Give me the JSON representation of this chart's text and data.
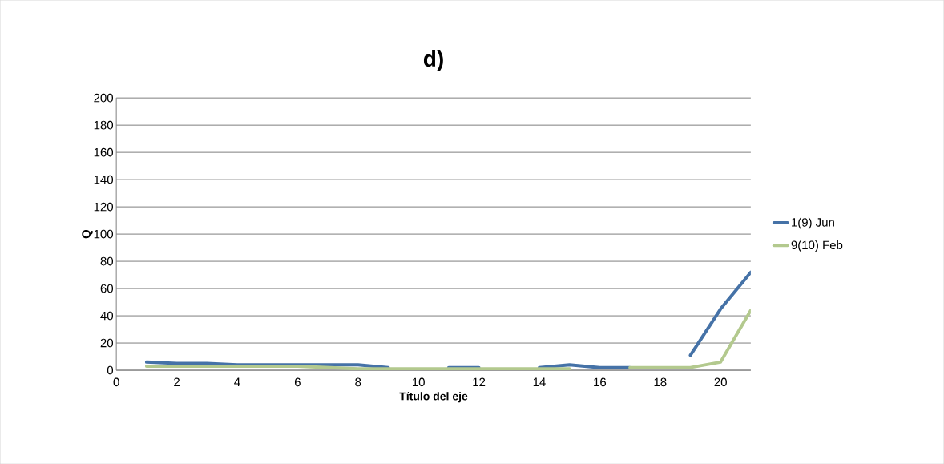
{
  "chart_data": {
    "type": "line",
    "title": "d)",
    "xlabel": "Título del eje",
    "ylabel": "Q",
    "x": [
      1,
      2,
      3,
      4,
      5,
      6,
      7,
      8,
      9,
      10,
      11,
      12,
      13,
      14,
      15,
      16,
      17,
      18,
      19,
      20,
      21
    ],
    "xlim": [
      0,
      21
    ],
    "xticks": [
      0,
      2,
      4,
      6,
      8,
      10,
      12,
      14,
      16,
      18,
      20
    ],
    "ylim": [
      0,
      200
    ],
    "yticks": [
      0,
      20,
      40,
      60,
      80,
      100,
      120,
      140,
      160,
      180,
      200
    ],
    "grid": "y",
    "legend": "right",
    "marker": "none",
    "series": [
      {
        "name": "1(9) Jun",
        "color": "#4572a7",
        "values": [
          6,
          5,
          5,
          4,
          4,
          4,
          4,
          4,
          2,
          null,
          2,
          2,
          null,
          2,
          4,
          2,
          2,
          null,
          11,
          45,
          72
        ]
      },
      {
        "name": "9(10) Feb",
        "color": "#b3c98e",
        "values": [
          3,
          3,
          3,
          3,
          3,
          3,
          2,
          1,
          1,
          1,
          1,
          1,
          1,
          1,
          1,
          null,
          2,
          2,
          2,
          6,
          44
        ]
      }
    ]
  }
}
